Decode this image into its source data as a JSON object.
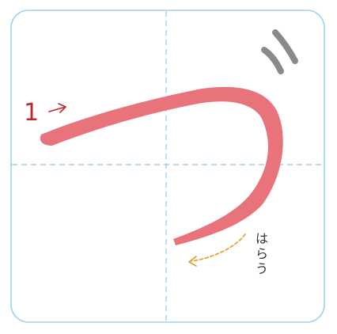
{
  "character": {
    "glyph": "つ",
    "stroke_count_shown": 1
  },
  "stroke": {
    "number": "1",
    "ending_note": "はらう",
    "direction_arrow_icon": "right-arrow-icon",
    "sweep_arrow_icon": "dashed-curved-arrow-icon"
  },
  "colors": {
    "frame": "#9fd1f0",
    "guide_lines": "#9fd1f0",
    "stroke_fill": "#e8737a",
    "stroke_number": "#c1272d",
    "sweep_arrow": "#e8a13a",
    "dakuten_mark": "#8a8a8a",
    "note_text": "#333333"
  }
}
